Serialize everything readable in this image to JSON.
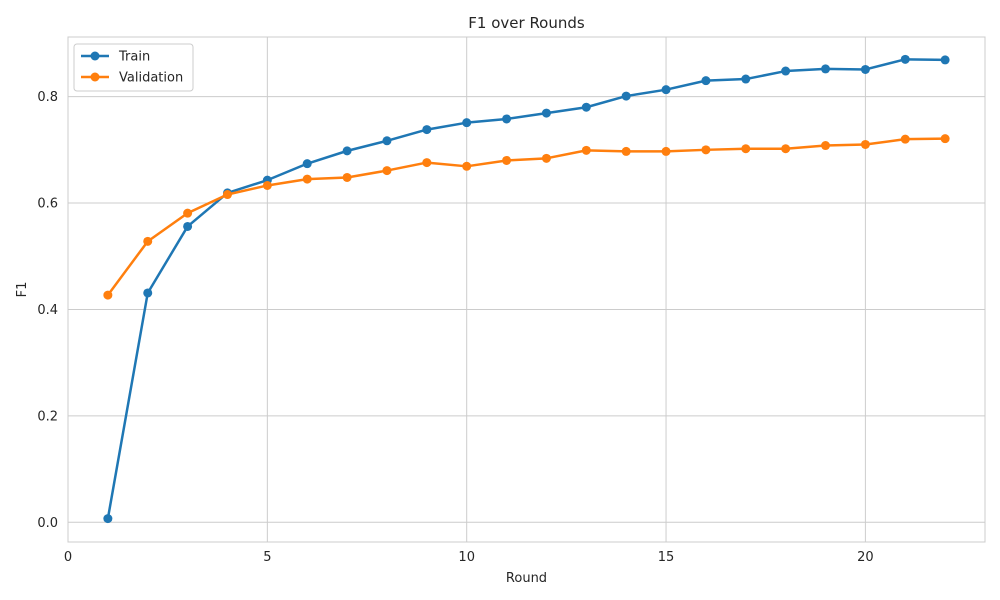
{
  "chart_data": {
    "type": "line",
    "title": "F1 over Rounds",
    "xlabel": "Round",
    "ylabel": "F1",
    "xlim": [
      0,
      23
    ],
    "ylim": [
      -0.037,
      0.912
    ],
    "x_ticks": [
      0,
      5,
      10,
      15,
      20
    ],
    "y_ticks": [
      0.0,
      0.2,
      0.4,
      0.6,
      0.8
    ],
    "grid": true,
    "legend_position": "top-left",
    "x": [
      1,
      2,
      3,
      4,
      5,
      6,
      7,
      8,
      9,
      10,
      11,
      12,
      13,
      14,
      15,
      16,
      17,
      18,
      19,
      20,
      21,
      22
    ],
    "series": [
      {
        "name": "Train",
        "color": "#1f77b4",
        "values": [
          0.007,
          0.431,
          0.556,
          0.619,
          0.643,
          0.674,
          0.698,
          0.717,
          0.738,
          0.751,
          0.758,
          0.769,
          0.78,
          0.801,
          0.813,
          0.83,
          0.833,
          0.848,
          0.852,
          0.851,
          0.87,
          0.869
        ]
      },
      {
        "name": "Validation",
        "color": "#ff7f0e",
        "values": [
          0.427,
          0.528,
          0.581,
          0.616,
          0.633,
          0.645,
          0.648,
          0.661,
          0.676,
          0.669,
          0.68,
          0.684,
          0.699,
          0.697,
          0.697,
          0.7,
          0.702,
          0.702,
          0.708,
          0.71,
          0.72,
          0.721
        ]
      }
    ]
  }
}
